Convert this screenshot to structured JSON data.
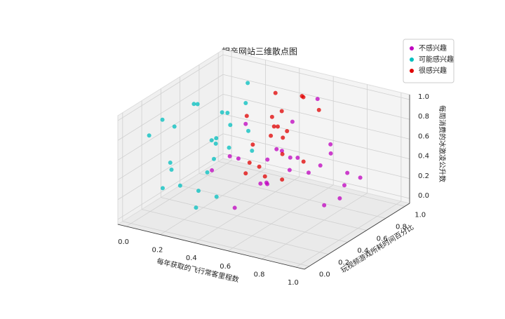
{
  "chart_data": {
    "type": "scatter3d",
    "title": "相亲网站三维散点图",
    "x_label": "每年获取的飞行常客里程数",
    "y_label": "玩视频游戏所耗时间百分比",
    "z_label": "每周消费的冰激凌公升数",
    "xlim": [
      -0.05,
      1.05
    ],
    "ylim": [
      -0.05,
      1.05
    ],
    "zlim": [
      -0.05,
      1.05
    ],
    "xticks": [
      {
        "value": 0,
        "label": "0.0"
      },
      0.2,
      0.4,
      0.6,
      0.8,
      {
        "value": 1,
        "label": "1.0"
      }
    ],
    "yticks": [
      {
        "value": 0,
        "label": "0.0"
      },
      0.2,
      0.4,
      0.6,
      0.8,
      {
        "value": 1,
        "label": "1.0"
      }
    ],
    "zticks": [
      {
        "value": 0,
        "label": "0.0"
      },
      0.2,
      0.4,
      0.6,
      0.8,
      {
        "value": 1,
        "label": "1.0"
      }
    ],
    "grid": true,
    "legend": "upper right",
    "series": [
      {
        "name": "不感兴趣",
        "color": "#bf00bf",
        "x": [
          0.35,
          0.5,
          0.65,
          0.8,
          0.95,
          0.42,
          0.58,
          0.72,
          0.88,
          0.3,
          0.47,
          0.62,
          0.77,
          0.92,
          0.55,
          0.68,
          0.85,
          0.38,
          0.98,
          0.6,
          0.75,
          0.45,
          0.9,
          0.52,
          0.7
        ],
        "y": [
          0.9,
          0.8,
          0.2,
          0.6,
          0.4,
          0.1,
          0.95,
          0.3,
          0.7,
          0.5,
          0.25,
          0.85,
          0.05,
          0.55,
          0.45,
          0.65,
          0.15,
          0.75,
          0.35,
          0.6,
          0.9,
          0.4,
          0.8,
          0.2,
          0.5
        ],
        "z": [
          0.3,
          0.7,
          0.5,
          0.1,
          0.9,
          0.6,
          0.2,
          0.8,
          0.4,
          0.45,
          0.15,
          0.95,
          0.65,
          0.25,
          0.55,
          0.35,
          0.75,
          0.05,
          0.85,
          0.5,
          0.1,
          0.9,
          0.3,
          0.7,
          0.6
        ]
      },
      {
        "name": "可能感兴趣",
        "color": "#00bfbf",
        "x": [
          0.05,
          0.12,
          0.22,
          0.08,
          0.18,
          0.27,
          0.03,
          0.15,
          0.24,
          0.1,
          0.2,
          0.06,
          0.29,
          0.14,
          0.09,
          0.25,
          0.17,
          0.02,
          0.21,
          0.11,
          0.28,
          0.07,
          0.19,
          0.13,
          0.23
        ],
        "y": [
          0.1,
          0.3,
          0.5,
          0.7,
          0.9,
          0.2,
          0.4,
          0.6,
          0.8,
          0.15,
          0.35,
          0.55,
          0.75,
          0.95,
          0.25,
          0.45,
          0.65,
          0.85,
          0.05,
          0.5,
          0.3,
          0.9,
          0.7,
          0.1,
          0.6
        ],
        "z": [
          0.8,
          0.2,
          0.6,
          0.4,
          0.9,
          0.1,
          0.7,
          0.3,
          0.5,
          0.95,
          0.15,
          0.85,
          0.35,
          0.65,
          0.45,
          0.05,
          0.75,
          0.25,
          0.55,
          0.9,
          0.4,
          0.2,
          0.6,
          0.3,
          0.8
        ]
      },
      {
        "name": "很感兴趣",
        "color": "#e00000",
        "x": [
          0.4,
          0.5,
          0.6,
          0.45,
          0.55,
          0.38,
          0.62,
          0.48,
          0.58,
          0.42,
          0.52,
          0.65,
          0.44,
          0.57,
          0.36,
          0.5,
          0.61,
          0.47,
          0.53,
          0.4
        ],
        "y": [
          0.5,
          0.7,
          0.9,
          0.4,
          0.6,
          0.8,
          0.3,
          0.95,
          0.55,
          0.75,
          0.35,
          0.65,
          0.85,
          0.45,
          0.6,
          0.9,
          0.5,
          0.7,
          0.4,
          0.8
        ],
        "z": [
          0.9,
          0.6,
          0.8,
          0.4,
          0.95,
          0.7,
          0.5,
          0.85,
          0.3,
          0.65,
          0.75,
          0.45,
          0.55,
          0.8,
          0.35,
          0.9,
          0.6,
          0.7,
          0.5,
          0.95
        ]
      }
    ]
  }
}
